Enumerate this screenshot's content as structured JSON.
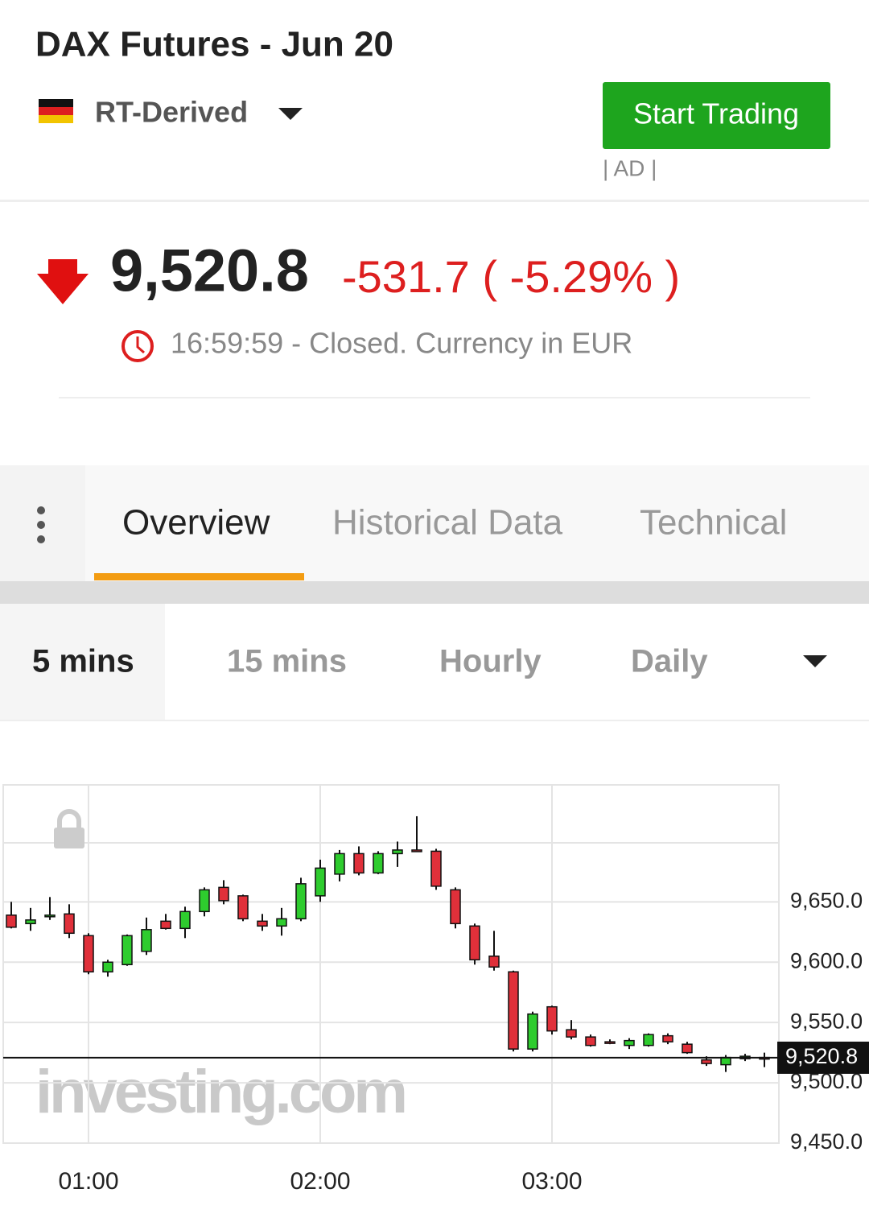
{
  "header": {
    "title": "DAX Futures - Jun 20",
    "source": "RT-Derived",
    "button": "Start Trading",
    "ad": "| AD |"
  },
  "price": {
    "last": "9,520.8",
    "change": "-531.7 ( -5.29% )",
    "status": "16:59:59 - Closed. Currency in EUR"
  },
  "tabs": [
    "Overview",
    "Historical Data",
    "Technical"
  ],
  "timeframes": [
    "5 mins",
    "15 mins",
    "Hourly",
    "Daily"
  ],
  "watermark": "investing.com",
  "chart_data": {
    "type": "candlestick",
    "categories": [
      null,
      null,
      null,
      null,
      "01:00",
      null,
      null,
      null,
      null,
      null,
      null,
      null,
      null,
      null,
      null,
      null,
      "02:00",
      null,
      null,
      null,
      null,
      null,
      null,
      null,
      null,
      null,
      null,
      null,
      "03:00",
      null,
      null,
      null,
      null,
      null,
      null,
      null,
      null,
      null,
      null,
      null
    ],
    "open": [
      9639,
      9632,
      9638,
      9640,
      9622,
      9592,
      9598,
      9609,
      9634,
      9628,
      9642,
      9662,
      9655,
      9634,
      9630,
      9636,
      9655,
      9673,
      9690,
      9674,
      9690,
      9693,
      9692,
      9660,
      9630,
      9605,
      9592,
      9528,
      9563,
      9544,
      9538,
      9534,
      9531,
      9531,
      9539,
      9532,
      9519,
      9515,
      9520,
      9521
    ],
    "high": [
      9650,
      9645,
      9654,
      9648,
      9624,
      9602,
      9623,
      9637,
      9640,
      9646,
      9662,
      9668,
      9656,
      9640,
      9645,
      9670,
      9685,
      9693,
      9696,
      9692,
      9700,
      9721,
      9694,
      9662,
      9632,
      9626,
      9593,
      9559,
      9564,
      9552,
      9540,
      9536,
      9537,
      9541,
      9541,
      9534,
      9522,
      9523,
      9524,
      9525
    ],
    "low": [
      9628,
      9626,
      9635,
      9620,
      9590,
      9588,
      9597,
      9606,
      9627,
      9620,
      9638,
      9648,
      9634,
      9626,
      9622,
      9634,
      9650,
      9667,
      9672,
      9673,
      9679,
      9692,
      9660,
      9628,
      9598,
      9593,
      9526,
      9526,
      9540,
      9536,
      9530,
      9532,
      9528,
      9530,
      9532,
      9524,
      9514,
      9509,
      9518,
      9513
    ],
    "close": [
      9629,
      9635,
      9639,
      9624,
      9592,
      9600,
      9622,
      9627,
      9628,
      9642,
      9660,
      9651,
      9636,
      9630,
      9636,
      9665,
      9678,
      9690,
      9674,
      9690,
      9693,
      9692,
      9663,
      9632,
      9602,
      9596,
      9528,
      9557,
      9543,
      9538,
      9531,
      9533,
      9535,
      9540,
      9534,
      9525,
      9516,
      9521,
      9522,
      9520.8
    ],
    "up_color": "#2ecc2e",
    "down_color": "#e0303a",
    "ylim": [
      9450,
      9747
    ],
    "yticks": [
      {
        "value": 9450,
        "label": "9,450.0"
      },
      {
        "value": 9500,
        "label": "9,500.0"
      },
      {
        "value": 9550,
        "label": "9,550.0"
      },
      {
        "value": 9600,
        "label": "9,600.0"
      },
      {
        "value": 9650,
        "label": "9,650.0"
      }
    ],
    "last": {
      "value": 9520.8,
      "label": "9,520.8"
    },
    "grid": true
  }
}
